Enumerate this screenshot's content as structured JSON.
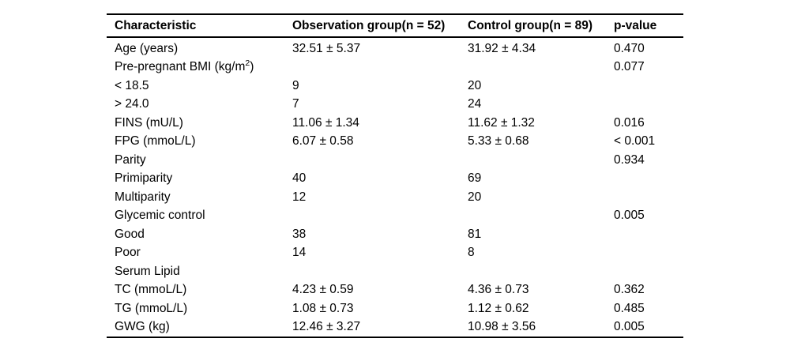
{
  "table": {
    "columns": [
      "Characteristic",
      "Observation group(n = 52)",
      "Control group(n = 89)",
      "p-value"
    ],
    "rows": [
      {
        "label": "Age (years)",
        "obs": "32.51 ± 5.37",
        "ctrl": "31.92 ± 4.34",
        "p": "0.470"
      },
      {
        "label": "Pre-pregnant BMI (kg/m²)",
        "obs": "",
        "ctrl": "",
        "p": "0.077"
      },
      {
        "label": "< 18.5",
        "obs": "9",
        "ctrl": "20",
        "p": ""
      },
      {
        "label": "> 24.0",
        "obs": "7",
        "ctrl": "24",
        "p": ""
      },
      {
        "label": "FINS (mU/L)",
        "obs": "11.06 ± 1.34",
        "ctrl": "11.62 ± 1.32",
        "p": "0.016"
      },
      {
        "label": "FPG (mmoL/L)",
        "obs": "6.07 ± 0.58",
        "ctrl": "5.33 ± 0.68",
        "p": "< 0.001"
      },
      {
        "label": "Parity",
        "obs": "",
        "ctrl": "",
        "p": "0.934"
      },
      {
        "label": "Primiparity",
        "obs": "40",
        "ctrl": "69",
        "p": ""
      },
      {
        "label": "Multiparity",
        "obs": "12",
        "ctrl": "20",
        "p": ""
      },
      {
        "label": "Glycemic control",
        "obs": "",
        "ctrl": "",
        "p": "0.005"
      },
      {
        "label": "Good",
        "obs": "38",
        "ctrl": "81",
        "p": ""
      },
      {
        "label": "Poor",
        "obs": "14",
        "ctrl": "8",
        "p": ""
      },
      {
        "label": "Serum Lipid",
        "obs": "",
        "ctrl": "",
        "p": ""
      },
      {
        "label": "TC (mmoL/L)",
        "obs": "4.23 ± 0.59",
        "ctrl": "4.36 ± 0.73",
        "p": "0.362"
      },
      {
        "label": "TG (mmoL/L)",
        "obs": "1.08 ± 0.73",
        "ctrl": "1.12 ± 0.62",
        "p": "0.485"
      },
      {
        "label": "GWG (kg)",
        "obs": "12.46 ± 3.27",
        "ctrl": "10.98 ± 3.56",
        "p": "0.005"
      }
    ]
  }
}
